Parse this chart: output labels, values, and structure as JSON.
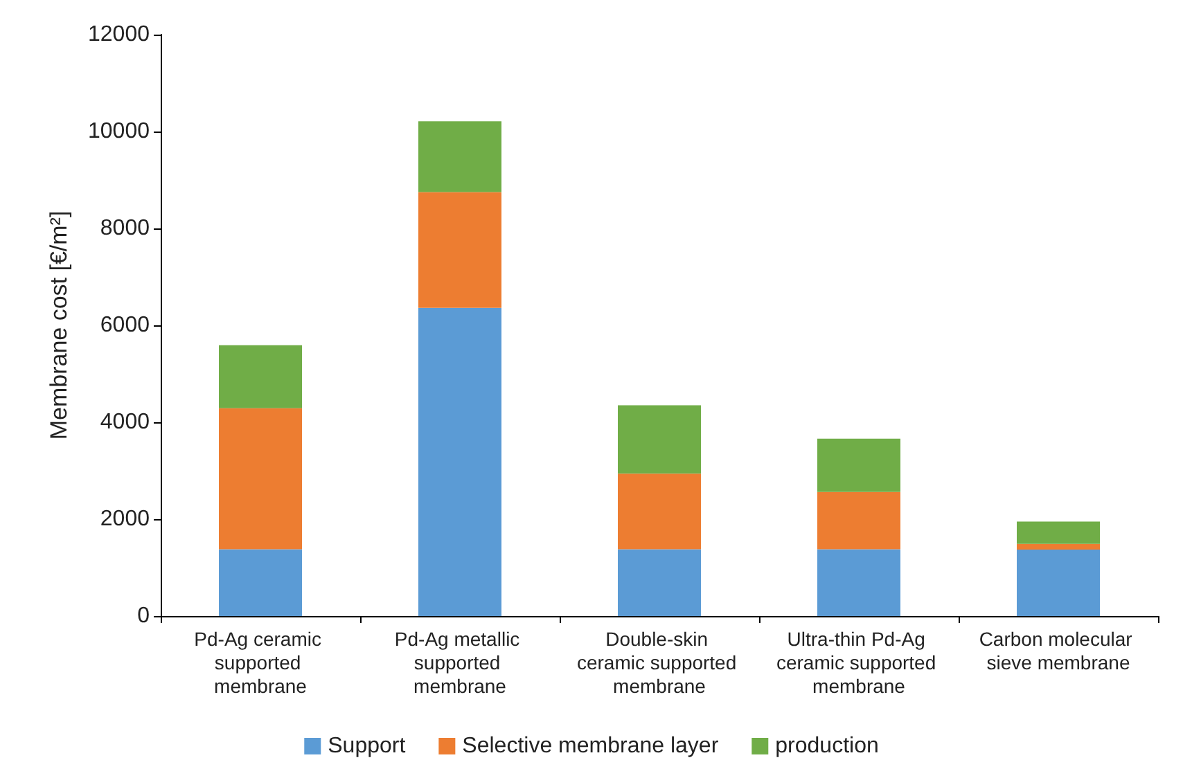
{
  "chart_data": {
    "type": "bar",
    "stacked": true,
    "ylabel": "Membrane cost [€/m²]",
    "categories": [
      "Pd-Ag ceramic supported membrane",
      "Pd-Ag metallic supported membrane",
      "Double-skin ceramic supported membrane",
      "Ultra-thin Pd-Ag ceramic supported membrane",
      "Carbon molecular sieve membrane"
    ],
    "series": [
      {
        "name": "Support",
        "color": "#5b9bd5",
        "values": [
          1380,
          6360,
          1380,
          1380,
          1370
        ]
      },
      {
        "name": "Selective membrane layer",
        "color": "#ed7d31",
        "values": [
          2910,
          2390,
          1560,
          1180,
          120
        ]
      },
      {
        "name": "production",
        "color": "#70ad47",
        "values": [
          1300,
          1460,
          1410,
          1100,
          460
        ]
      }
    ],
    "ylim": [
      0,
      12000
    ],
    "yticks": [
      0,
      2000,
      4000,
      6000,
      8000,
      10000,
      12000
    ],
    "grid": false,
    "legend": "bottom"
  }
}
